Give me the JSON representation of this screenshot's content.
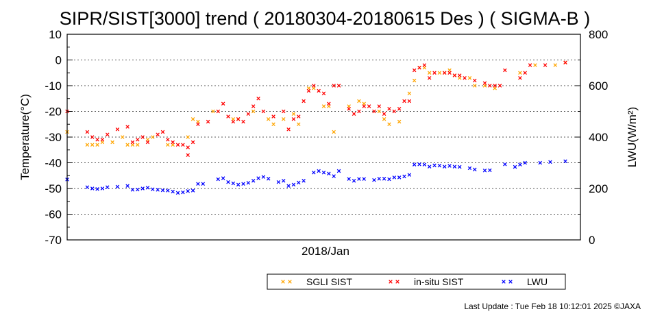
{
  "chart_data": {
    "type": "scatter",
    "title": "SIPR/SIST[3000] trend ( 20180304-20180615 Des ) ( SIGMA-B )",
    "xlabel": "2018/Jan",
    "ylabel_left": "Temperature(°C)",
    "ylabel_right": "LWU(W/m²)",
    "ylim_left": [
      -70,
      10
    ],
    "yticks_left": [
      "10",
      "0",
      "-10",
      "-20",
      "-30",
      "-40",
      "-50",
      "-60",
      "-70"
    ],
    "ylim_right": [
      0,
      800
    ],
    "yticks_right": [
      "800",
      "600",
      "400",
      "200",
      "0"
    ],
    "xlim_days": [
      1,
      103
    ],
    "grid": true,
    "legend_position": "bottom",
    "series": [
      {
        "name": "SGLI SIST",
        "axis": "left",
        "color": "#ffa500",
        "marker": "x",
        "points": [
          [
            1,
            -28
          ],
          [
            5,
            -33
          ],
          [
            6,
            -33
          ],
          [
            7,
            -33
          ],
          [
            8,
            -32
          ],
          [
            10,
            -32
          ],
          [
            12,
            -30
          ],
          [
            13,
            -33
          ],
          [
            14,
            -33
          ],
          [
            15,
            -33
          ],
          [
            17,
            -31
          ],
          [
            18,
            -30
          ],
          [
            21,
            -33
          ],
          [
            22,
            -33
          ],
          [
            25,
            -30
          ],
          [
            26,
            -23
          ],
          [
            27,
            -24
          ],
          [
            30,
            -20
          ],
          [
            34,
            -23
          ],
          [
            35,
            -23
          ],
          [
            38,
            -20
          ],
          [
            41,
            -23
          ],
          [
            42,
            -25
          ],
          [
            44,
            -23
          ],
          [
            46,
            -21
          ],
          [
            47,
            -25
          ],
          [
            49,
            -11
          ],
          [
            50,
            -11
          ],
          [
            52,
            -18
          ],
          [
            53,
            -18
          ],
          [
            54,
            -28
          ],
          [
            57,
            -18
          ],
          [
            59,
            -16
          ],
          [
            60,
            -17
          ],
          [
            63,
            -20
          ],
          [
            64,
            -23
          ],
          [
            65,
            -25
          ],
          [
            67,
            -24
          ],
          [
            69,
            -13
          ],
          [
            70,
            -8
          ],
          [
            71,
            -3
          ],
          [
            72,
            -3
          ],
          [
            73,
            -5
          ],
          [
            75,
            -5
          ],
          [
            76,
            -5
          ],
          [
            77,
            -4
          ],
          [
            78,
            -6
          ],
          [
            79,
            -7
          ],
          [
            81,
            -7
          ],
          [
            82,
            -10
          ],
          [
            84,
            -10
          ],
          [
            86,
            -11
          ],
          [
            91,
            -5
          ],
          [
            94,
            -2
          ],
          [
            98,
            -2
          ],
          [
            100,
            -1
          ]
        ]
      },
      {
        "name": "in-situ SIST",
        "axis": "left",
        "color": "#ff0000",
        "marker": "x",
        "points": [
          [
            1,
            -20
          ],
          [
            5,
            -28
          ],
          [
            6,
            -30
          ],
          [
            7,
            -31
          ],
          [
            8,
            -31
          ],
          [
            9,
            -29
          ],
          [
            11,
            -27
          ],
          [
            13,
            -26
          ],
          [
            14,
            -32
          ],
          [
            15,
            -31
          ],
          [
            16,
            -30
          ],
          [
            17,
            -32
          ],
          [
            19,
            -29
          ],
          [
            20,
            -28
          ],
          [
            21,
            -31
          ],
          [
            22,
            -32
          ],
          [
            23,
            -33
          ],
          [
            24,
            -33
          ],
          [
            25,
            -37
          ],
          [
            25,
            -34
          ],
          [
            26,
            -32
          ],
          [
            27,
            -25
          ],
          [
            29,
            -24
          ],
          [
            31,
            -20
          ],
          [
            32,
            -17
          ],
          [
            33,
            -22
          ],
          [
            34,
            -24
          ],
          [
            35,
            -23
          ],
          [
            36,
            -24
          ],
          [
            37,
            -21
          ],
          [
            38,
            -18
          ],
          [
            39,
            -15
          ],
          [
            40,
            -20
          ],
          [
            42,
            -22
          ],
          [
            44,
            -20
          ],
          [
            45,
            -27
          ],
          [
            46,
            -23
          ],
          [
            47,
            -22
          ],
          [
            48,
            -16
          ],
          [
            49,
            -12
          ],
          [
            50,
            -10
          ],
          [
            51,
            -12
          ],
          [
            52,
            -13
          ],
          [
            53,
            -17
          ],
          [
            54,
            -10
          ],
          [
            55,
            -10
          ],
          [
            57,
            -19
          ],
          [
            58,
            -21
          ],
          [
            59,
            -20
          ],
          [
            60,
            -18
          ],
          [
            61,
            -18
          ],
          [
            62,
            -20
          ],
          [
            63,
            -18
          ],
          [
            64,
            -21
          ],
          [
            65,
            -19
          ],
          [
            66,
            -20
          ],
          [
            67,
            -19
          ],
          [
            68,
            -16
          ],
          [
            69,
            -16
          ],
          [
            70,
            -4
          ],
          [
            71,
            -3
          ],
          [
            72,
            -2
          ],
          [
            73,
            -7
          ],
          [
            74,
            -5
          ],
          [
            76,
            -5
          ],
          [
            77,
            -5
          ],
          [
            78,
            -6
          ],
          [
            79,
            -6
          ],
          [
            80,
            -7
          ],
          [
            82,
            -8
          ],
          [
            84,
            -9
          ],
          [
            85,
            -10
          ],
          [
            86,
            -10
          ],
          [
            87,
            -10
          ],
          [
            88,
            -4
          ],
          [
            91,
            -7
          ],
          [
            92,
            -5
          ],
          [
            93,
            -2
          ],
          [
            96,
            -2
          ],
          [
            100,
            -1
          ]
        ]
      },
      {
        "name": "LWU",
        "axis": "right",
        "color": "#0000ff",
        "marker": "x",
        "points": [
          [
            1,
            235
          ],
          [
            5,
            205
          ],
          [
            6,
            200
          ],
          [
            7,
            198
          ],
          [
            8,
            200
          ],
          [
            9,
            205
          ],
          [
            11,
            207
          ],
          [
            13,
            210
          ],
          [
            14,
            195
          ],
          [
            15,
            196
          ],
          [
            16,
            200
          ],
          [
            17,
            203
          ],
          [
            18,
            197
          ],
          [
            19,
            195
          ],
          [
            20,
            193
          ],
          [
            21,
            192
          ],
          [
            22,
            188
          ],
          [
            23,
            183
          ],
          [
            24,
            185
          ],
          [
            25,
            190
          ],
          [
            26,
            192
          ],
          [
            27,
            218
          ],
          [
            28,
            218
          ],
          [
            31,
            236
          ],
          [
            32,
            240
          ],
          [
            33,
            225
          ],
          [
            34,
            220
          ],
          [
            35,
            215
          ],
          [
            36,
            218
          ],
          [
            37,
            222
          ],
          [
            38,
            230
          ],
          [
            39,
            240
          ],
          [
            40,
            245
          ],
          [
            41,
            238
          ],
          [
            43,
            225
          ],
          [
            44,
            230
          ],
          [
            45,
            210
          ],
          [
            46,
            215
          ],
          [
            47,
            223
          ],
          [
            48,
            230
          ],
          [
            50,
            262
          ],
          [
            51,
            268
          ],
          [
            52,
            262
          ],
          [
            53,
            258
          ],
          [
            54,
            248
          ],
          [
            55,
            268
          ],
          [
            57,
            237
          ],
          [
            58,
            230
          ],
          [
            59,
            237
          ],
          [
            60,
            237
          ],
          [
            62,
            233
          ],
          [
            63,
            238
          ],
          [
            64,
            238
          ],
          [
            65,
            236
          ],
          [
            66,
            243
          ],
          [
            67,
            243
          ],
          [
            68,
            247
          ],
          [
            69,
            253
          ],
          [
            70,
            293
          ],
          [
            71,
            294
          ],
          [
            72,
            293
          ],
          [
            73,
            285
          ],
          [
            74,
            290
          ],
          [
            75,
            289
          ],
          [
            76,
            285
          ],
          [
            77,
            288
          ],
          [
            78,
            285
          ],
          [
            79,
            284
          ],
          [
            81,
            279
          ],
          [
            82,
            274
          ],
          [
            84,
            270
          ],
          [
            85,
            271
          ],
          [
            88,
            294
          ],
          [
            90,
            284
          ],
          [
            91,
            293
          ],
          [
            92,
            300
          ],
          [
            95,
            300
          ],
          [
            97,
            303
          ],
          [
            100,
            306
          ]
        ]
      }
    ],
    "footer": "Last Update : Tue Feb 18 10:12:01 2025 ©JAXA"
  }
}
